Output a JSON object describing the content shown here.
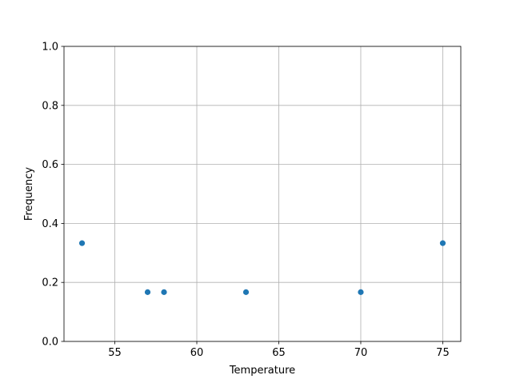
{
  "chart_data": {
    "type": "scatter",
    "title": "",
    "xlabel": "Temperature",
    "ylabel": "Frequency",
    "xlim": [
      51.9,
      76.1
    ],
    "ylim": [
      0,
      1.0
    ],
    "x_ticks": [
      55,
      60,
      65,
      70,
      75
    ],
    "x_tick_labels": [
      "55",
      "60",
      "65",
      "70",
      "75"
    ],
    "y_ticks": [
      0,
      0.2,
      0.4,
      0.6,
      0.8,
      1.0
    ],
    "y_tick_labels": [
      "0.0",
      "0.2",
      "0.4",
      "0.6",
      "0.8",
      "1.0"
    ],
    "grid": true,
    "color": "#1f77b4",
    "points": [
      {
        "x": 53,
        "y": 0.333
      },
      {
        "x": 57,
        "y": 0.167
      },
      {
        "x": 58,
        "y": 0.167
      },
      {
        "x": 63,
        "y": 0.167
      },
      {
        "x": 70,
        "y": 0.167
      },
      {
        "x": 75,
        "y": 0.333
      }
    ]
  }
}
